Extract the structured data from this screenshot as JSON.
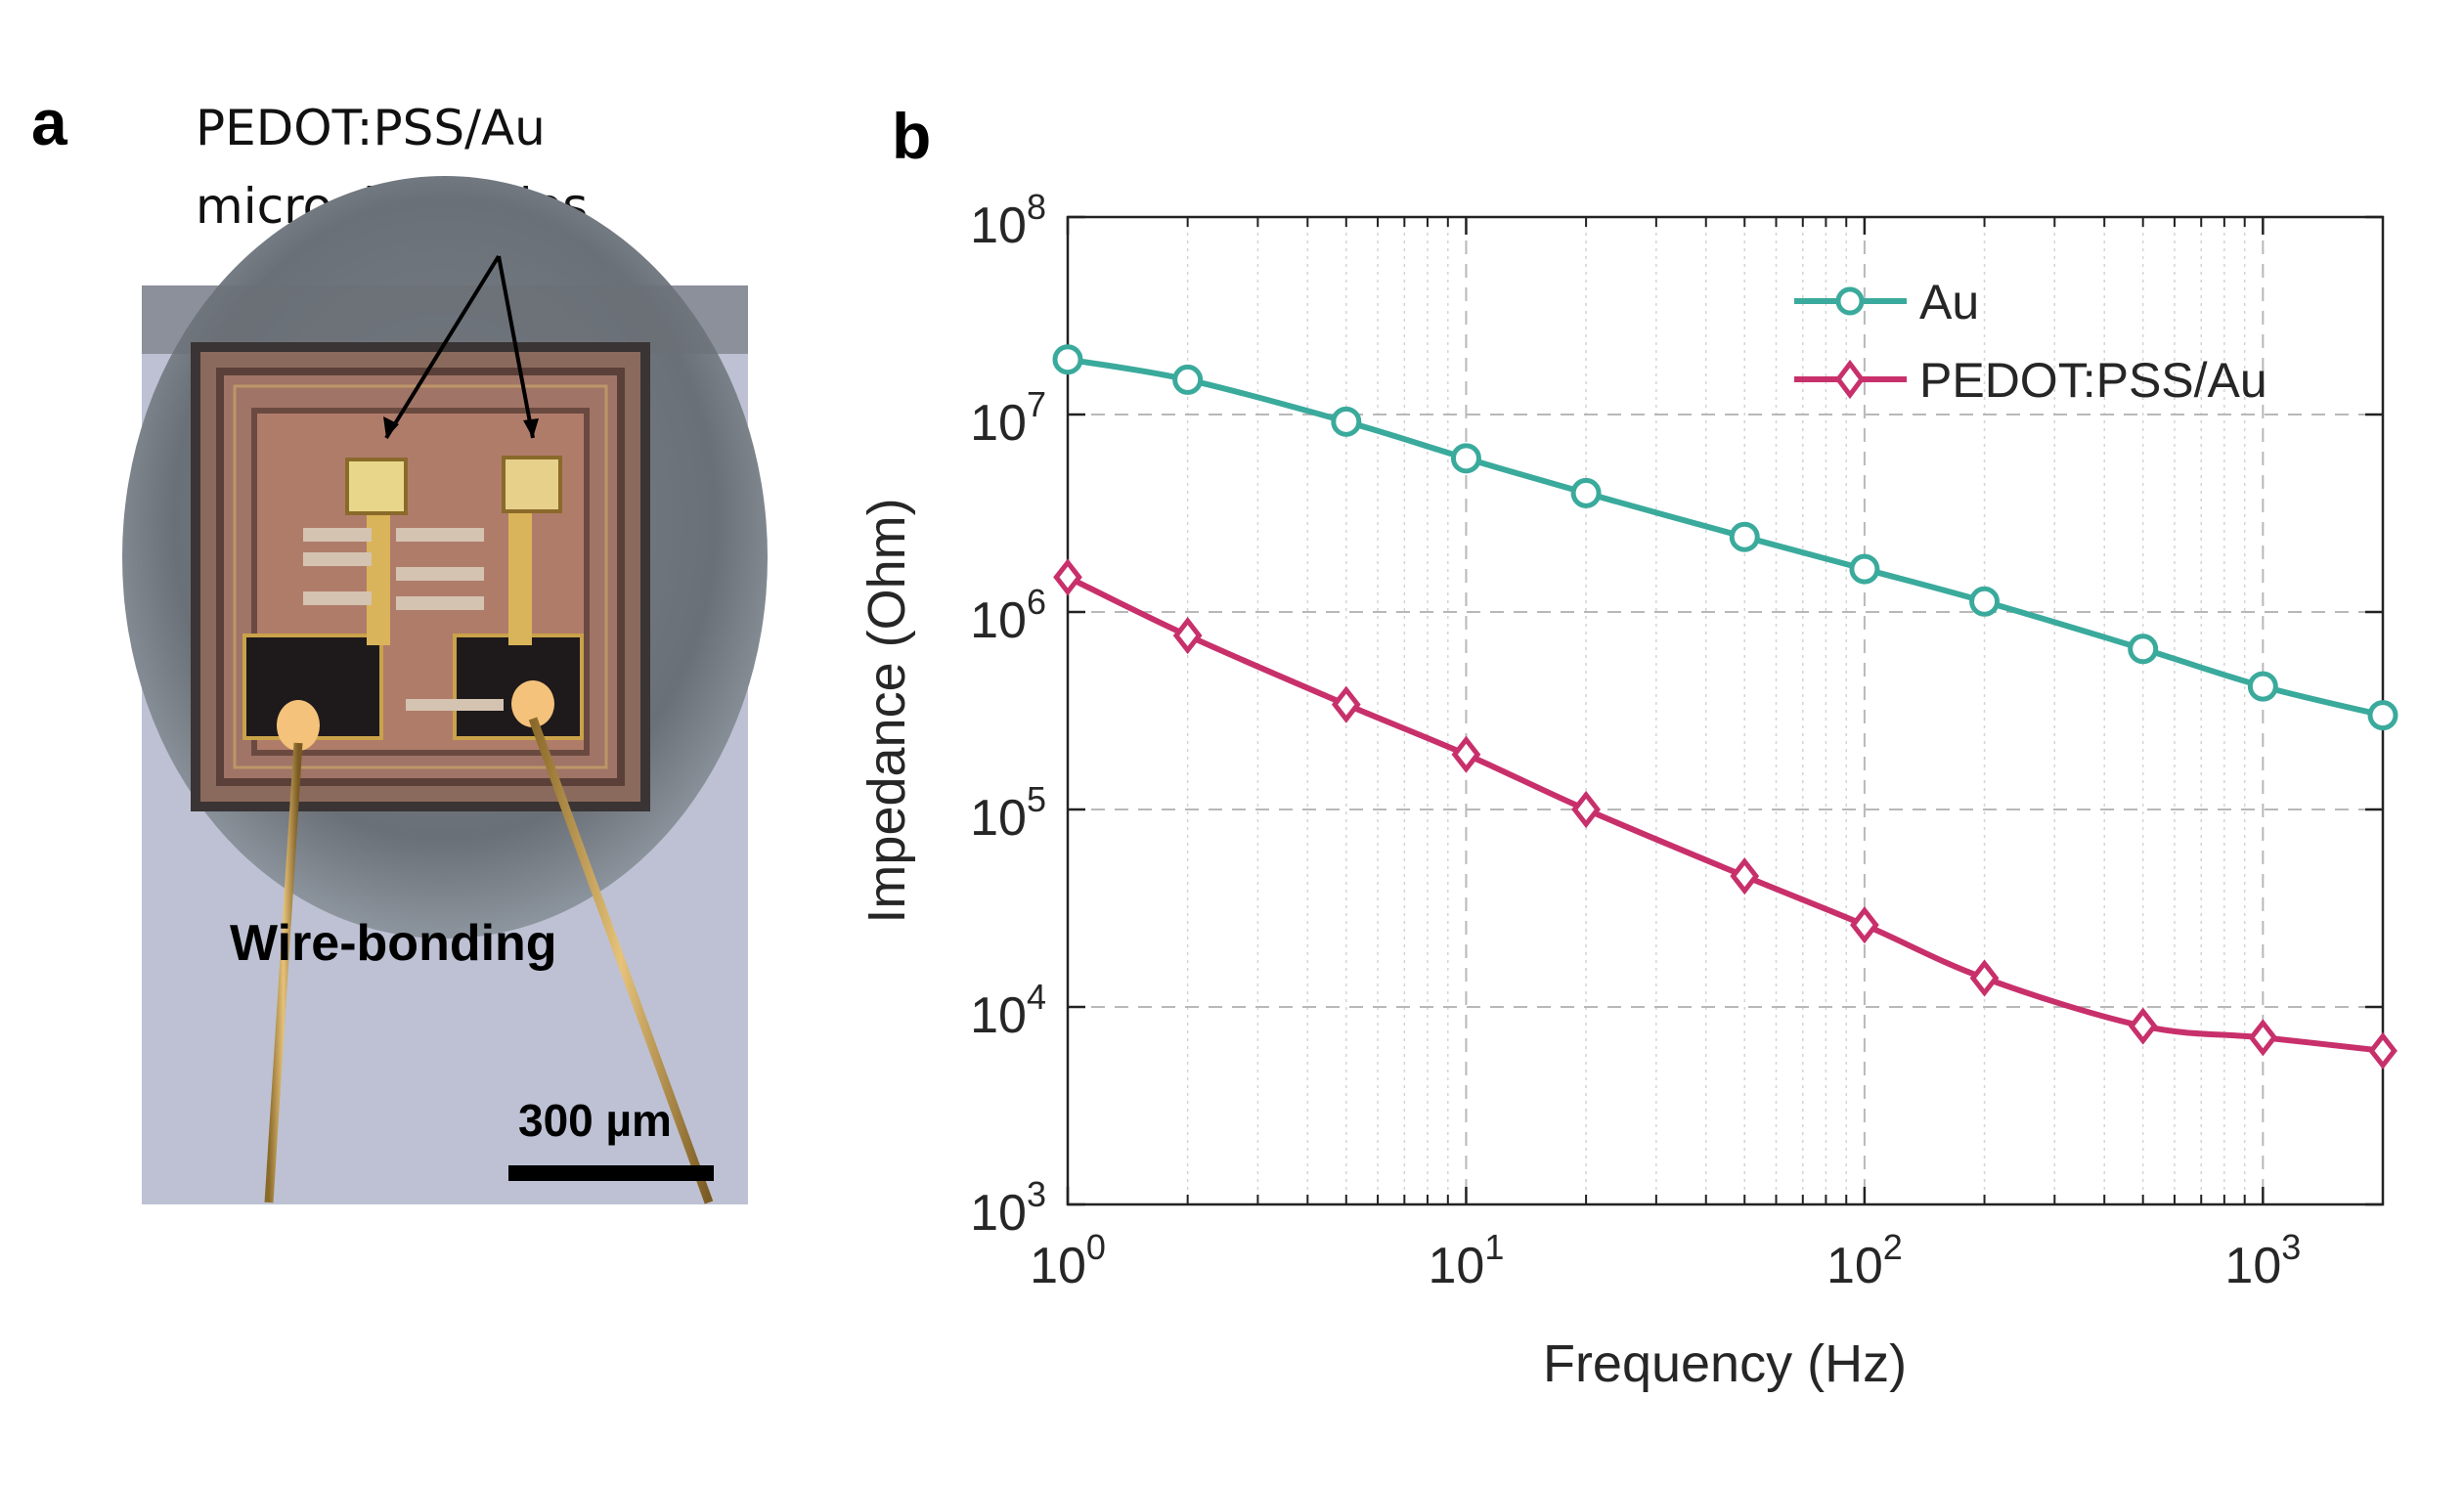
{
  "panel_a": {
    "label": "a",
    "annotation_line1": "PEDOT:PSS/Au",
    "annotation_line2": "microelectrodes",
    "wire_label": "Wire-bonding",
    "scale_label": "300 µm"
  },
  "panel_b": {
    "label": "b"
  },
  "chart_data": {
    "type": "line",
    "xscale": "log",
    "yscale": "log",
    "xlabel": "Frequency (Hz)",
    "ylabel": "Impedance (Ohm)",
    "xlim": [
      1,
      2000
    ],
    "ylim": [
      1000,
      100000000
    ],
    "grid": true,
    "legend_position": "top-right",
    "x_ticks": [
      {
        "value": 1,
        "base": "10",
        "exp": "0"
      },
      {
        "value": 10,
        "base": "10",
        "exp": "1"
      },
      {
        "value": 100,
        "base": "10",
        "exp": "2"
      },
      {
        "value": 1000,
        "base": "10",
        "exp": "3"
      }
    ],
    "y_ticks": [
      {
        "value": 1000,
        "base": "10",
        "exp": "3"
      },
      {
        "value": 10000,
        "base": "10",
        "exp": "4"
      },
      {
        "value": 100000,
        "base": "10",
        "exp": "5"
      },
      {
        "value": 1000000,
        "base": "10",
        "exp": "6"
      },
      {
        "value": 10000000,
        "base": "10",
        "exp": "7"
      },
      {
        "value": 100000000,
        "base": "10",
        "exp": "8"
      }
    ],
    "series": [
      {
        "name": "Au",
        "color": "#3aaa9c",
        "marker": "circle",
        "x": [
          1,
          2,
          5,
          10,
          20,
          50,
          100,
          200,
          500,
          1000,
          2000
        ],
        "y": [
          19000000,
          15000000,
          9200000,
          6000000,
          4000000,
          2400000,
          1650000,
          1130000,
          650000,
          420000,
          300000
        ]
      },
      {
        "name": "PEDOT:PSS/Au",
        "color": "#c8306b",
        "marker": "diamond",
        "x": [
          1,
          2,
          5,
          10,
          20,
          50,
          100,
          200,
          500,
          1000,
          2000
        ],
        "y": [
          1500000,
          760000,
          340000,
          190000,
          100000,
          46000,
          26000,
          14000,
          8000,
          7000,
          6000
        ]
      }
    ]
  }
}
